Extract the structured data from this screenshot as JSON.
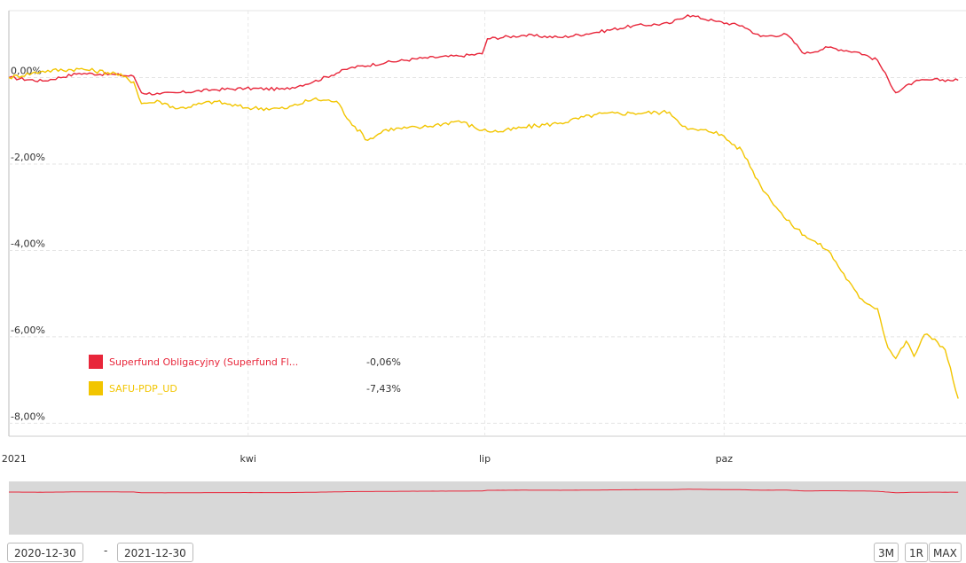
{
  "chart_data": {
    "type": "line",
    "y_tick_labels": [
      "0,00%",
      "-2,00%",
      "-4,00%",
      "-6,00%",
      "-8,00%"
    ],
    "y_tick_values": [
      0,
      -2,
      -4,
      -6,
      -8
    ],
    "ylim": [
      -8.3,
      1.55
    ],
    "x_tick_labels": [
      "2021",
      "kwi",
      "lip",
      "paz"
    ],
    "x_tick_dates": [
      "2021-01-01",
      "2021-04-01",
      "2021-07-01",
      "2021-10-01"
    ],
    "xlim": [
      "2020-12-30",
      "2022-01-02"
    ],
    "grid": true,
    "legend_position": "bottom-left",
    "series": [
      {
        "name": "Superfund Obligacyjny (Superfund Fl...",
        "last_value_label": "-0,06%",
        "color": "#e8263a",
        "points": [
          [
            "2020-12-30",
            0.0
          ],
          [
            "2021-01-12",
            -0.08
          ],
          [
            "2021-01-26",
            0.1
          ],
          [
            "2021-02-09",
            0.07
          ],
          [
            "2021-02-16",
            0.03
          ],
          [
            "2021-02-19",
            -0.35
          ],
          [
            "2021-02-26",
            -0.38
          ],
          [
            "2021-03-05",
            -0.35
          ],
          [
            "2021-03-19",
            -0.28
          ],
          [
            "2021-03-31",
            -0.25
          ],
          [
            "2021-04-15",
            -0.27
          ],
          [
            "2021-04-26",
            -0.1
          ],
          [
            "2021-05-10",
            0.22
          ],
          [
            "2021-05-24",
            0.35
          ],
          [
            "2021-06-07",
            0.45
          ],
          [
            "2021-06-21",
            0.5
          ],
          [
            "2021-06-30",
            0.55
          ],
          [
            "2021-07-02",
            0.9
          ],
          [
            "2021-07-16",
            0.98
          ],
          [
            "2021-07-30",
            0.93
          ],
          [
            "2021-08-13",
            1.05
          ],
          [
            "2021-08-27",
            1.2
          ],
          [
            "2021-09-10",
            1.25
          ],
          [
            "2021-09-17",
            1.45
          ],
          [
            "2021-09-28",
            1.3
          ],
          [
            "2021-10-08",
            1.2
          ],
          [
            "2021-10-15",
            0.95
          ],
          [
            "2021-10-25",
            1.0
          ],
          [
            "2021-11-01",
            0.55
          ],
          [
            "2021-11-10",
            0.7
          ],
          [
            "2021-11-22",
            0.58
          ],
          [
            "2021-11-29",
            0.4
          ],
          [
            "2021-12-06",
            -0.35
          ],
          [
            "2021-12-13",
            -0.1
          ],
          [
            "2021-12-20",
            -0.05
          ],
          [
            "2021-12-30",
            -0.06
          ]
        ]
      },
      {
        "name": "SAFU-PDP_UD",
        "last_value_label": "-7,43%",
        "color": "#f2c500",
        "points": [
          [
            "2020-12-30",
            0.0
          ],
          [
            "2021-01-12",
            0.15
          ],
          [
            "2021-01-26",
            0.2
          ],
          [
            "2021-02-09",
            0.1
          ],
          [
            "2021-02-16",
            -0.1
          ],
          [
            "2021-02-19",
            -0.6
          ],
          [
            "2021-02-26",
            -0.55
          ],
          [
            "2021-03-05",
            -0.72
          ],
          [
            "2021-03-19",
            -0.55
          ],
          [
            "2021-03-31",
            -0.7
          ],
          [
            "2021-04-15",
            -0.72
          ],
          [
            "2021-04-26",
            -0.5
          ],
          [
            "2021-05-05",
            -0.55
          ],
          [
            "2021-05-10",
            -1.0
          ],
          [
            "2021-05-17",
            -1.45
          ],
          [
            "2021-05-24",
            -1.2
          ],
          [
            "2021-06-07",
            -1.15
          ],
          [
            "2021-06-21",
            -1.0
          ],
          [
            "2021-06-30",
            -1.22
          ],
          [
            "2021-07-07",
            -1.25
          ],
          [
            "2021-07-16",
            -1.15
          ],
          [
            "2021-07-30",
            -1.05
          ],
          [
            "2021-08-13",
            -0.85
          ],
          [
            "2021-08-27",
            -0.82
          ],
          [
            "2021-09-10",
            -0.8
          ],
          [
            "2021-09-17",
            -1.2
          ],
          [
            "2021-09-28",
            -1.25
          ],
          [
            "2021-10-08",
            -1.7
          ],
          [
            "2021-10-15",
            -2.5
          ],
          [
            "2021-10-25",
            -3.3
          ],
          [
            "2021-11-01",
            -3.65
          ],
          [
            "2021-11-10",
            -4.0
          ],
          [
            "2021-11-22",
            -5.1
          ],
          [
            "2021-11-29",
            -5.35
          ],
          [
            "2021-12-03",
            -6.25
          ],
          [
            "2021-12-06",
            -6.5
          ],
          [
            "2021-12-10",
            -6.1
          ],
          [
            "2021-12-13",
            -6.45
          ],
          [
            "2021-12-17",
            -5.95
          ],
          [
            "2021-12-21",
            -6.05
          ],
          [
            "2021-12-25",
            -6.3
          ],
          [
            "2021-12-30",
            -7.43
          ]
        ]
      }
    ]
  },
  "navigator": {
    "line_color": "#e8263a"
  },
  "controls": {
    "date_from": "2020-12-30",
    "date_separator": "-",
    "date_to": "2021-12-30",
    "range_buttons": [
      "3M",
      "1R",
      "MAX"
    ]
  }
}
